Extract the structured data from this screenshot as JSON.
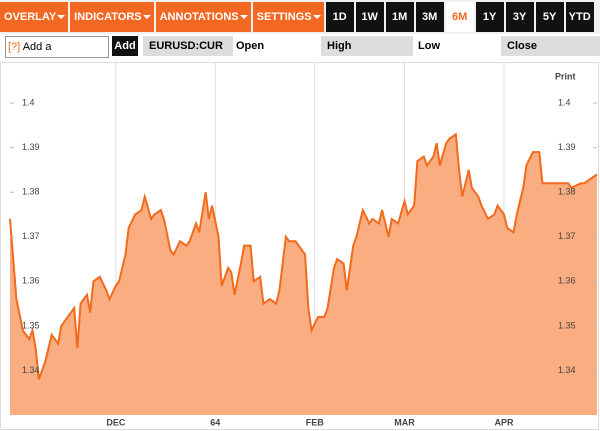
{
  "toolbar": {
    "menus": [
      "OVERLAY",
      "INDICATORS",
      "ANNOTATIONS",
      "SETTINGS"
    ],
    "periods": [
      "1D",
      "1W",
      "1M",
      "3M",
      "6M",
      "1Y",
      "3Y",
      "5Y",
      "YTD"
    ],
    "selected_period": "6M"
  },
  "comparison": {
    "help": "[?]",
    "placeholder": "Add a Comparison",
    "button": "Add",
    "ticker": "EURUSD:CUR",
    "fields": [
      "Open",
      "High",
      "Low",
      "Close"
    ]
  },
  "print": "Print",
  "chart_data": {
    "type": "area",
    "line_color": "#f26a1c",
    "fill_color": "#f9ad80",
    "grid": true,
    "x": [
      0,
      2,
      4,
      6,
      7,
      8,
      9,
      11,
      13,
      15,
      16,
      18,
      20,
      21,
      22,
      24,
      25,
      26,
      28,
      30,
      31,
      33,
      34,
      36,
      37,
      39,
      41,
      42,
      44,
      45,
      47,
      48,
      50,
      51,
      53,
      55,
      56,
      58,
      59,
      61,
      62,
      63,
      65,
      66,
      68,
      69,
      70,
      72,
      73,
      75,
      76,
      78,
      79,
      81,
      83,
      84,
      86,
      87,
      89,
      90,
      92,
      93,
      94,
      96,
      98,
      99,
      101,
      102,
      104,
      105,
      107,
      108,
      110,
      112,
      113,
      115,
      116,
      118,
      119,
      121,
      123,
      124,
      126,
      127,
      129,
      130,
      132,
      133,
      134,
      136,
      137,
      139,
      140,
      141,
      143,
      144,
      146,
      147,
      149,
      151,
      152,
      154,
      155,
      157,
      158,
      160,
      161,
      163,
      165,
      166,
      168,
      169,
      171,
      172,
      174,
      175,
      178,
      179,
      181,
      183
    ],
    "values": [
      1.374,
      1.356,
      1.349,
      1.347,
      1.349,
      1.345,
      1.338,
      1.342,
      1.348,
      1.346,
      1.35,
      1.352,
      1.354,
      1.345,
      1.355,
      1.357,
      1.353,
      1.36,
      1.361,
      1.358,
      1.356,
      1.359,
      1.36,
      1.366,
      1.372,
      1.375,
      1.376,
      1.379,
      1.374,
      1.375,
      1.376,
      1.374,
      1.367,
      1.366,
      1.369,
      1.368,
      1.369,
      1.373,
      1.371,
      1.38,
      1.374,
      1.377,
      1.37,
      1.359,
      1.363,
      1.362,
      1.357,
      1.364,
      1.368,
      1.368,
      1.36,
      1.361,
      1.355,
      1.356,
      1.355,
      1.358,
      1.37,
      1.369,
      1.369,
      1.368,
      1.366,
      1.354,
      1.349,
      1.352,
      1.352,
      1.354,
      1.363,
      1.365,
      1.364,
      1.358,
      1.368,
      1.37,
      1.376,
      1.373,
      1.374,
      1.373,
      1.376,
      1.37,
      1.374,
      1.373,
      1.378,
      1.375,
      1.377,
      1.387,
      1.388,
      1.386,
      1.388,
      1.391,
      1.386,
      1.391,
      1.392,
      1.393,
      1.385,
      1.379,
      1.385,
      1.381,
      1.379,
      1.377,
      1.374,
      1.375,
      1.377,
      1.375,
      1.372,
      1.371,
      1.375,
      1.381,
      1.386,
      1.389,
      1.389,
      1.382,
      1.382,
      1.382,
      1.382,
      1.382,
      1.382,
      1.381,
      1.382,
      1.382,
      1.383,
      1.384
    ],
    "xlim": [
      0,
      183
    ],
    "xticks": [
      {
        "value": 33,
        "label": "DEC"
      },
      64,
      {
        "value": 95,
        "label": "FEB"
      },
      {
        "value": 123,
        "label": "MAR"
      },
      {
        "value": 154,
        "label": "APR"
      }
    ],
    "ylim": [
      1.33,
      1.409
    ],
    "yticks": [
      1.34,
      1.35,
      1.36,
      1.37,
      1.38,
      1.39,
      1.4
    ]
  }
}
